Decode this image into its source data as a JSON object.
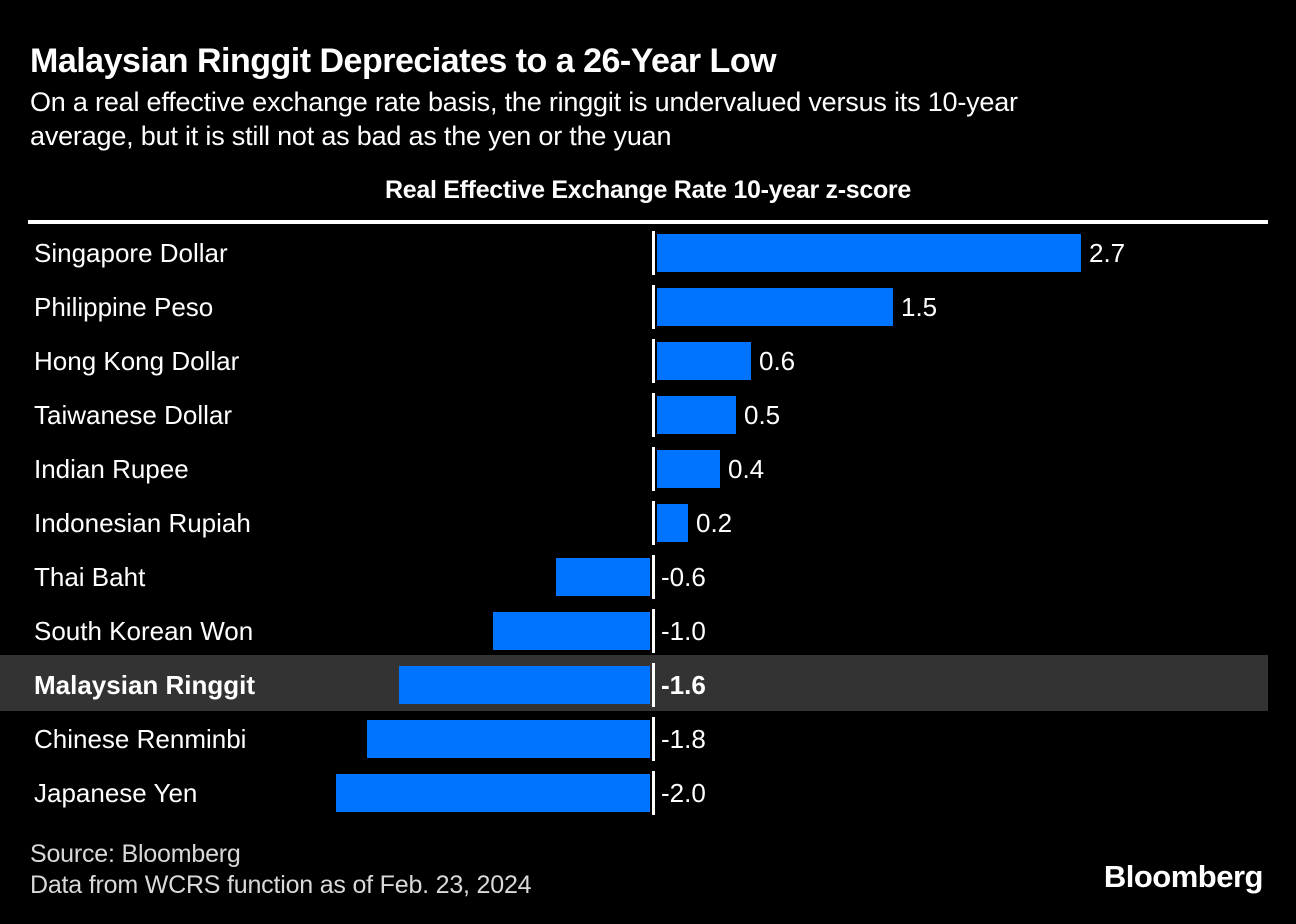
{
  "header": {
    "title": "Malaysian Ringgit Depreciates to a 26-Year Low",
    "subtitle_lines": [
      "On a real effective exchange rate basis, the ringgit is undervalued versus its 10-year",
      "average, but it is still not as bad as the yen or the yuan"
    ]
  },
  "chart_data": {
    "type": "bar",
    "orientation": "horizontal",
    "title": "Real Effective Exchange Rate 10-year z-score",
    "categories": [
      "Singapore Dollar",
      "Philippine Peso",
      "Hong Kong Dollar",
      "Taiwanese Dollar",
      "Indian Rupee",
      "Indonesian Rupiah",
      "Thai Baht",
      "South Korean Won",
      "Malaysian Ringgit",
      "Chinese Renminbi",
      "Japanese Yen"
    ],
    "values": [
      2.7,
      1.5,
      0.6,
      0.5,
      0.4,
      0.2,
      -0.6,
      -1.0,
      -1.6,
      -1.8,
      -2.0
    ],
    "value_labels": [
      "2.7",
      "1.5",
      "0.6",
      "0.5",
      "0.4",
      "0.2",
      "-0.6",
      "-1.0",
      "-1.6",
      "-1.8",
      "-2.0"
    ],
    "highlight_index": 8,
    "highlight_category": "Malaysian Ringgit",
    "bar_color": "#0073ff",
    "highlight_row_color": "#333333",
    "zero_line_color": "#ffffff",
    "xlim": [
      -2.0,
      2.7
    ],
    "gridlines": false,
    "legend": "none"
  },
  "footer": {
    "source_line": "Source: Bloomberg",
    "data_line": "Data from WCRS function as of Feb. 23, 2024",
    "logo_text": "Bloomberg"
  }
}
